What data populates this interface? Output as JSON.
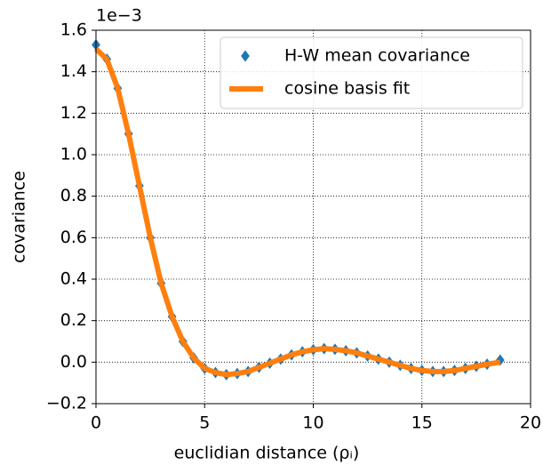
{
  "chart_data": {
    "type": "line",
    "xlabel": "euclidian distance (ρᵢ)",
    "ylabel": "covariance",
    "y_offset_text": "1e−3",
    "x": [
      0,
      0.5,
      1,
      1.5,
      2,
      2.5,
      3,
      3.5,
      4,
      4.5,
      5,
      5.5,
      6,
      6.5,
      7,
      7.5,
      8,
      8.5,
      9,
      9.5,
      10,
      10.5,
      11,
      11.5,
      12,
      12.5,
      13,
      13.5,
      14,
      14.5,
      15,
      15.5,
      16,
      16.5,
      17,
      17.5,
      18,
      18.6
    ],
    "series": [
      {
        "name": "H-W mean covariance",
        "color": "#1f77b4",
        "style": "diamond",
        "values": [
          1.53,
          1.46,
          1.32,
          1.1,
          0.85,
          0.6,
          0.38,
          0.22,
          0.1,
          0.02,
          -0.03,
          -0.05,
          -0.06,
          -0.055,
          -0.045,
          -0.025,
          -0.005,
          0.015,
          0.035,
          0.05,
          0.06,
          0.065,
          0.062,
          0.055,
          0.045,
          0.03,
          0.015,
          0.0,
          -0.015,
          -0.03,
          -0.04,
          -0.045,
          -0.045,
          -0.04,
          -0.03,
          -0.02,
          -0.01,
          0.01
        ]
      },
      {
        "name": "cosine basis fit",
        "color": "#ff7f0e",
        "style": "line",
        "values": [
          1.51,
          1.46,
          1.32,
          1.1,
          0.85,
          0.6,
          0.38,
          0.22,
          0.1,
          0.02,
          -0.03,
          -0.05,
          -0.06,
          -0.055,
          -0.045,
          -0.025,
          -0.005,
          0.015,
          0.035,
          0.05,
          0.06,
          0.065,
          0.062,
          0.055,
          0.045,
          0.03,
          0.015,
          0.0,
          -0.015,
          -0.03,
          -0.04,
          -0.045,
          -0.045,
          -0.04,
          -0.03,
          -0.02,
          -0.01,
          0.0
        ]
      }
    ],
    "xlim": [
      0,
      20
    ],
    "ylim": [
      -0.2,
      1.6
    ],
    "xticks": [
      0,
      5,
      10,
      15,
      20
    ],
    "yticks": [
      {
        "value": -0.2,
        "label": "−0.2"
      },
      {
        "value": 0.0,
        "label": "0.0"
      },
      0.2,
      0.4,
      0.6,
      0.8,
      {
        "value": 1.0,
        "label": "1.0"
      },
      1.2,
      1.4,
      1.6
    ],
    "grid": true,
    "legend": "upper right"
  }
}
